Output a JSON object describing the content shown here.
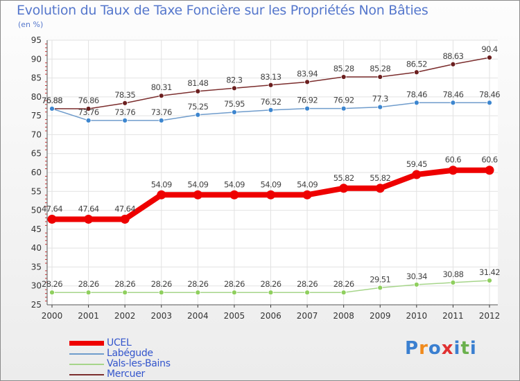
{
  "header": {
    "title": "Evolution du Taux de Taxe Foncière sur les Propriétés Non Bâties",
    "unit": "(en %)"
  },
  "logo": {
    "letters": [
      "P",
      "r",
      "o",
      "x",
      "i",
      "t",
      "i"
    ],
    "colors": [
      "#3a7fd0",
      "#f08a1c",
      "#3a7fd0",
      "#e03030",
      "#3a7fd0",
      "#6ab04c",
      "#3a7fd0"
    ]
  },
  "chart_data": {
    "type": "line",
    "title": "Evolution du Taux de Taxe Foncière sur les Propriétés Non Bâties",
    "ylabel": "(en %)",
    "xlabel": "",
    "ylim": [
      25,
      95
    ],
    "yticks": [
      25,
      30,
      35,
      40,
      45,
      50,
      55,
      60,
      65,
      70,
      75,
      80,
      85,
      90,
      95
    ],
    "categories": [
      "2000",
      "2001",
      "2002",
      "2003",
      "2004",
      "2005",
      "2006",
      "2007",
      "2008",
      "2009",
      "2010",
      "2011",
      "2012"
    ],
    "series": [
      {
        "name": "Mercuer",
        "color": "#7b2d2d",
        "point": "#6b1f1f",
        "width": 1.5,
        "values": [
          76.88,
          76.86,
          78.35,
          80.31,
          81.48,
          82.3,
          83.13,
          83.94,
          85.28,
          85.28,
          86.52,
          88.63,
          90.4
        ],
        "labels": [
          "76.88",
          "76.86",
          "78.35",
          "80.31",
          "81.48",
          "82.3",
          "83.13",
          "83.94",
          "85.28",
          "85.28",
          "86.52",
          "88.63",
          "90.4"
        ]
      },
      {
        "name": "Labégude",
        "color": "#6f9ccc",
        "point": "#3d86cf",
        "width": 1.5,
        "values": [
          76.88,
          73.76,
          73.76,
          73.76,
          75.25,
          75.95,
          76.52,
          76.92,
          76.92,
          77.3,
          78.46,
          78.46,
          78.46
        ],
        "labels": [
          "76.88",
          "73.76",
          "73.76",
          "73.76",
          "75.25",
          "75.95",
          "76.52",
          "76.92",
          "76.92",
          "77.3",
          "78.46",
          "78.46",
          "78.46"
        ]
      },
      {
        "name": "UCEL",
        "color": "#ee0000",
        "point": "#ee0000",
        "width": 8,
        "values": [
          47.64,
          47.64,
          47.64,
          54.09,
          54.09,
          54.09,
          54.09,
          54.09,
          55.82,
          55.82,
          59.45,
          60.6,
          60.6
        ],
        "labels": [
          "47.64",
          "47.64",
          "47.64",
          "54.09",
          "54.09",
          "54.09",
          "54.09",
          "54.09",
          "55.82",
          "55.82",
          "59.45",
          "60.6",
          "60.6"
        ]
      },
      {
        "name": "Vals-les-Bains",
        "color": "#a6d58a",
        "point": "#8fcf5e",
        "width": 1.5,
        "values": [
          28.26,
          28.26,
          28.26,
          28.26,
          28.26,
          28.26,
          28.26,
          28.26,
          28.26,
          29.51,
          30.34,
          30.88,
          31.42
        ],
        "labels": [
          "28.26",
          "28.26",
          "28.26",
          "28.26",
          "28.26",
          "28.26",
          "28.26",
          "28.26",
          "28.26",
          "29.51",
          "30.34",
          "30.88",
          "31.42"
        ]
      }
    ],
    "legend": [
      {
        "name": "UCEL",
        "color": "#ee0000",
        "thick": true
      },
      {
        "name": "Labégude",
        "color": "#6f9ccc",
        "thick": false
      },
      {
        "name": "Vals-les-Bains",
        "color": "#a6d58a",
        "thick": false
      },
      {
        "name": "Mercuer",
        "color": "#7b2d2d",
        "thick": false
      }
    ],
    "legend_position": "bottom-left",
    "grid": true
  }
}
